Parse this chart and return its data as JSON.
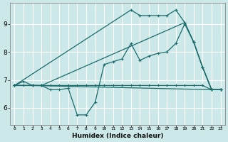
{
  "xlabel": "Humidex (Indice chaleur)",
  "background_color": "#cde8e8",
  "grid_color": "#ffffff",
  "line_color": "#1a6b6b",
  "xlim": [
    -0.5,
    23.5
  ],
  "ylim": [
    5.4,
    9.75
  ],
  "xticks": [
    0,
    1,
    2,
    3,
    4,
    5,
    6,
    7,
    8,
    9,
    10,
    11,
    12,
    13,
    14,
    15,
    16,
    17,
    18,
    19,
    20,
    21,
    22,
    23
  ],
  "yticks": [
    6,
    7,
    8,
    9
  ],
  "line1_x": [
    0,
    1,
    2,
    3,
    4,
    5,
    6,
    7,
    8,
    9,
    10,
    11,
    12,
    13,
    14,
    15,
    16,
    17,
    18,
    19,
    20,
    21,
    22,
    23
  ],
  "line1_y": [
    6.8,
    6.8,
    6.8,
    6.8,
    6.8,
    6.8,
    6.8,
    6.8,
    6.8,
    6.8,
    6.8,
    6.8,
    6.8,
    6.8,
    6.8,
    6.8,
    6.8,
    6.8,
    6.8,
    6.8,
    6.8,
    6.8,
    6.65,
    6.65
  ],
  "line2_x": [
    0,
    1,
    2,
    3,
    4,
    5,
    6,
    7,
    8,
    9,
    10,
    11,
    12,
    13,
    14,
    15,
    16,
    17,
    18,
    19,
    20,
    21,
    22,
    23
  ],
  "line2_y": [
    6.8,
    6.95,
    6.8,
    6.8,
    6.65,
    6.65,
    6.7,
    5.75,
    5.75,
    6.2,
    7.55,
    7.65,
    7.75,
    8.3,
    7.7,
    7.85,
    7.95,
    8.0,
    8.3,
    9.0,
    8.35,
    7.45,
    6.65,
    6.65
  ],
  "line3_x": [
    0,
    2,
    22,
    23
  ],
  "line3_y": [
    6.8,
    6.8,
    6.65,
    6.65
  ],
  "line4_x": [
    0,
    13,
    14,
    15,
    16,
    17,
    18,
    19,
    20,
    21,
    22,
    23
  ],
  "line4_y": [
    6.8,
    9.5,
    9.3,
    9.3,
    9.3,
    9.3,
    9.5,
    9.05,
    8.35,
    7.45,
    6.65,
    6.65
  ],
  "line5_x": [
    0,
    2,
    3,
    19,
    20,
    21,
    22,
    23
  ],
  "line5_y": [
    6.8,
    6.8,
    6.8,
    9.05,
    8.35,
    7.45,
    6.65,
    6.65
  ]
}
